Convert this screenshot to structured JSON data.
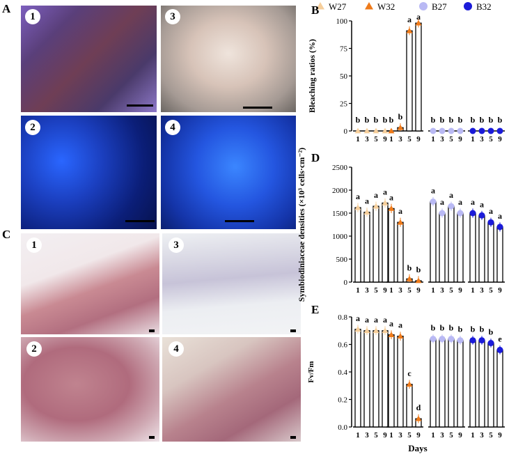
{
  "panels": {
    "A": "A",
    "B": "B",
    "C": "C",
    "D": "D",
    "E": "E"
  },
  "photo_numbers": [
    "1",
    "2",
    "3",
    "4"
  ],
  "histo_numbers": [
    "1",
    "2",
    "3",
    "4"
  ],
  "legend": [
    {
      "name": "W27",
      "marker": "triangle",
      "color": "#f6cf9c"
    },
    {
      "name": "W32",
      "marker": "triangle",
      "color": "#ee7a1a"
    },
    {
      "name": "B27",
      "marker": "circle",
      "color": "#b9b9f4"
    },
    {
      "name": "B32",
      "marker": "circle",
      "color": "#1b1bd9"
    }
  ],
  "xlabel": "Days",
  "chart_data": [
    {
      "type": "bar",
      "panel": "B",
      "ylabel": "Bleaching ratios (%)",
      "ylim": [
        0,
        100
      ],
      "yticks": [
        "0",
        "25",
        "50",
        "75",
        "100"
      ],
      "categories": [
        "1",
        "3",
        "5",
        "9"
      ],
      "series": [
        {
          "name": "W27",
          "values": [
            0,
            0,
            0,
            0
          ],
          "letters": [
            "b",
            "b",
            "b",
            "b"
          ]
        },
        {
          "name": "W32",
          "values": [
            0,
            3,
            91,
            98
          ],
          "letters": [
            "b",
            "b",
            "a",
            "a"
          ]
        },
        {
          "name": "B27",
          "values": [
            0,
            0,
            0,
            0
          ],
          "letters": [
            "b",
            "b",
            "b",
            "b"
          ]
        },
        {
          "name": "B32",
          "values": [
            0,
            0,
            0,
            0
          ],
          "letters": [
            "b",
            "b",
            "b",
            "b"
          ]
        }
      ]
    },
    {
      "type": "bar",
      "panel": "D",
      "ylabel": "Symbiodiniaceae densities (×10³ cells·cm⁻²)",
      "ylim": [
        0,
        2500
      ],
      "yticks": [
        "0",
        "500",
        "1000",
        "1500",
        "2000",
        "2500"
      ],
      "categories": [
        "1",
        "3",
        "5",
        "9"
      ],
      "series": [
        {
          "name": "W27",
          "values": [
            1620,
            1520,
            1650,
            1720
          ],
          "letters": [
            "a",
            "a",
            "a",
            "a"
          ]
        },
        {
          "name": "W32",
          "values": [
            1600,
            1300,
            70,
            30
          ],
          "letters": [
            "a",
            "a",
            "b",
            "b"
          ]
        },
        {
          "name": "B27",
          "values": [
            1750,
            1500,
            1650,
            1500
          ],
          "letters": [
            "a",
            "a",
            "a",
            "a"
          ]
        },
        {
          "name": "B32",
          "values": [
            1500,
            1450,
            1300,
            1200
          ],
          "letters": [
            "a",
            "a",
            "a",
            "a"
          ]
        }
      ]
    },
    {
      "type": "bar",
      "panel": "E",
      "ylabel": "Fv/Fm",
      "ylim": [
        0,
        0.8
      ],
      "yticks": [
        "0.0",
        "0.2",
        "0.4",
        "0.6",
        "0.8"
      ],
      "categories": [
        "1",
        "3",
        "5",
        "9"
      ],
      "series": [
        {
          "name": "W27",
          "values": [
            0.71,
            0.7,
            0.7,
            0.7
          ],
          "letters": [
            "a",
            "a",
            "a",
            "a"
          ]
        },
        {
          "name": "W32",
          "values": [
            0.67,
            0.66,
            0.31,
            0.06
          ],
          "letters": [
            "a",
            "a",
            "c",
            "d"
          ]
        },
        {
          "name": "B27",
          "values": [
            0.64,
            0.64,
            0.64,
            0.63
          ],
          "letters": [
            "b",
            "b",
            "b",
            "b"
          ]
        },
        {
          "name": "B32",
          "values": [
            0.63,
            0.63,
            0.61,
            0.56
          ],
          "letters": [
            "b",
            "b",
            "b",
            "e"
          ]
        }
      ]
    }
  ]
}
